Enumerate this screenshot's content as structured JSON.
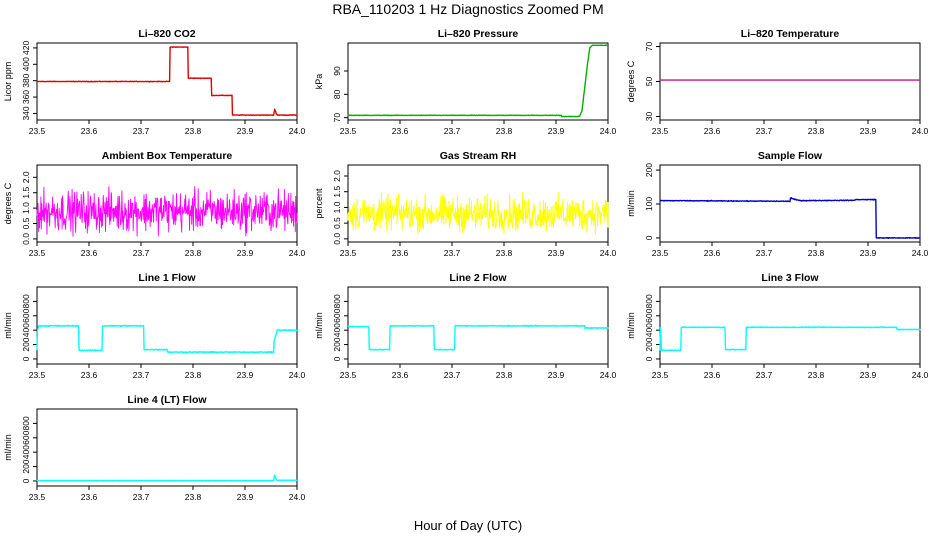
{
  "page": {
    "title": "RBA_110203  1 Hz Diagnostics Zoomed PM",
    "xlabel": "Hour of Day (UTC)"
  },
  "chart_data": [
    {
      "type": "line",
      "title": "Li–820 CO2",
      "ylabel": "Licor ppm",
      "color": "#e00000",
      "xlim": [
        23.5,
        24.0
      ],
      "ylim": [
        332,
        426
      ],
      "xticks": [
        "23.5",
        "23.6",
        "23.7",
        "23.8",
        "23.9",
        "24.0"
      ],
      "yticks": [
        "340",
        "360",
        "380",
        "400",
        "420"
      ],
      "x": [
        23.5,
        23.755,
        23.756,
        23.79,
        23.791,
        23.835,
        23.836,
        23.875,
        23.876,
        23.955,
        23.957,
        23.96,
        23.962,
        24.0
      ],
      "y": [
        379,
        379,
        421,
        421,
        383,
        383,
        362,
        362,
        338,
        338,
        345,
        340,
        338,
        338
      ],
      "noise": 0.5
    },
    {
      "type": "line",
      "title": "Li–820 Pressure",
      "ylabel": "kPa",
      "color": "#00b000",
      "xlim": [
        23.5,
        24.0
      ],
      "ylim": [
        69,
        102
      ],
      "xticks": [
        "23.5",
        "23.6",
        "23.7",
        "23.8",
        "23.9",
        "24.0"
      ],
      "yticks": [
        "70",
        "80",
        "90"
      ],
      "x": [
        23.5,
        23.91,
        23.911,
        23.945,
        23.95,
        23.96,
        23.965,
        23.97,
        24.0
      ],
      "y": [
        71,
        71,
        70.5,
        70.5,
        73,
        92,
        100,
        101,
        101
      ],
      "noise": 0.15
    },
    {
      "type": "line",
      "title": "Li–820 Temperature",
      "ylabel": "degrees C",
      "color": "#cc1080",
      "xlim": [
        23.5,
        24.0
      ],
      "ylim": [
        28,
        72
      ],
      "xticks": [
        "23.5",
        "23.6",
        "23.7",
        "23.8",
        "23.9",
        "24.0"
      ],
      "yticks": [
        "30",
        "50",
        "70"
      ],
      "x": [
        23.5,
        24.0
      ],
      "y": [
        50.8,
        50.8
      ],
      "noise": 0
    },
    {
      "type": "line",
      "title": "Ambient Box Temperature",
      "ylabel": "degrees C",
      "color": "#ff00ff",
      "xlim": [
        23.5,
        24.0
      ],
      "ylim": [
        -0.1,
        2.4
      ],
      "xticks": [
        "23.5",
        "23.6",
        "23.7",
        "23.8",
        "23.9",
        "24.0"
      ],
      "yticks": [
        "0.0",
        "0.5",
        "1.0",
        "1.5",
        "2.0"
      ],
      "x": [
        23.5,
        24.0
      ],
      "y": [
        0.9,
        0.9
      ],
      "noise": 0.6,
      "noise_lo": 0.0,
      "noise_hi": 2.3
    },
    {
      "type": "line",
      "title": "Gas Stream RH",
      "ylabel": "percent",
      "color": "#ffff00",
      "xlim": [
        23.5,
        24.0
      ],
      "ylim": [
        -0.1,
        2.35
      ],
      "xticks": [
        "23.5",
        "23.6",
        "23.7",
        "23.8",
        "23.9",
        "24.0"
      ],
      "yticks": [
        "0.0",
        "0.5",
        "1.0",
        "1.5",
        "2.0"
      ],
      "x": [
        23.5,
        24.0
      ],
      "y": [
        0.8,
        0.8
      ],
      "noise": 0.5,
      "noise_lo": -0.05,
      "noise_hi": 2.25
    },
    {
      "type": "line",
      "title": "Sample Flow",
      "ylabel": "ml/min",
      "color": "#0000cc",
      "xlim": [
        23.5,
        24.0
      ],
      "ylim": [
        -12,
        215
      ],
      "xticks": [
        "23.5",
        "23.6",
        "23.7",
        "23.8",
        "23.9",
        "24.0"
      ],
      "yticks": [
        "0",
        "100",
        "200"
      ],
      "x": [
        23.5,
        23.75,
        23.751,
        23.76,
        23.77,
        23.875,
        23.876,
        23.915,
        23.916,
        24.0
      ],
      "y": [
        110,
        108,
        118,
        113,
        110,
        111,
        113,
        113,
        0,
        0
      ],
      "noise": 1.5
    },
    {
      "type": "line",
      "title": "Line 1 Flow",
      "ylabel": "ml/min",
      "color": "#00ffff",
      "xlim": [
        23.5,
        24.0
      ],
      "ylim": [
        -70,
        1000
      ],
      "xticks": [
        "23.5",
        "23.6",
        "23.7",
        "23.8",
        "23.9",
        "24.0"
      ],
      "yticks": [
        "0",
        "200",
        "400",
        "600",
        "800"
      ],
      "x": [
        23.5,
        23.501,
        23.503,
        23.58,
        23.581,
        23.625,
        23.626,
        23.705,
        23.706,
        23.75,
        23.752,
        23.955,
        23.956,
        23.96,
        23.962,
        24.0
      ],
      "y": [
        120,
        400,
        460,
        460,
        120,
        120,
        460,
        460,
        130,
        130,
        95,
        95,
        250,
        350,
        400,
        400
      ],
      "noise": 10
    },
    {
      "type": "line",
      "title": "Line 2 Flow",
      "ylabel": "ml/min",
      "color": "#00ffff",
      "xlim": [
        23.5,
        24.0
      ],
      "ylim": [
        -70,
        1000
      ],
      "xticks": [
        "23.5",
        "23.6",
        "23.7",
        "23.8",
        "23.9",
        "24.0"
      ],
      "yticks": [
        "0",
        "200",
        "400",
        "600",
        "800"
      ],
      "x": [
        23.5,
        23.54,
        23.541,
        23.58,
        23.581,
        23.665,
        23.666,
        23.705,
        23.706,
        23.955,
        23.956,
        24.0
      ],
      "y": [
        450,
        450,
        130,
        130,
        460,
        460,
        130,
        130,
        460,
        460,
        430,
        430
      ],
      "noise": 8
    },
    {
      "type": "line",
      "title": "Line 3 Flow",
      "ylabel": "ml/min",
      "color": "#00ffff",
      "xlim": [
        23.5,
        24.0
      ],
      "ylim": [
        -70,
        1000
      ],
      "xticks": [
        "23.5",
        "23.6",
        "23.7",
        "23.8",
        "23.9",
        "24.0"
      ],
      "yticks": [
        "0",
        "200",
        "400",
        "600",
        "800"
      ],
      "x": [
        23.5,
        23.501,
        23.503,
        23.54,
        23.541,
        23.625,
        23.626,
        23.665,
        23.666,
        23.955,
        23.956,
        24.0
      ],
      "y": [
        120,
        440,
        120,
        120,
        440,
        440,
        130,
        130,
        440,
        440,
        410,
        410
      ],
      "noise": 8
    },
    {
      "type": "line",
      "title": "Line 4 (LT) Flow",
      "ylabel": "ml/min",
      "color": "#00ffff",
      "xlim": [
        23.5,
        24.0
      ],
      "ylim": [
        -70,
        1000
      ],
      "xticks": [
        "23.5",
        "23.6",
        "23.7",
        "23.8",
        "23.9",
        "24.0"
      ],
      "yticks": [
        "0",
        "200",
        "400",
        "600",
        "800"
      ],
      "x": [
        23.5,
        23.955,
        23.957,
        23.96,
        23.962,
        24.0
      ],
      "y": [
        5,
        5,
        80,
        20,
        10,
        10
      ],
      "noise": 2
    }
  ]
}
